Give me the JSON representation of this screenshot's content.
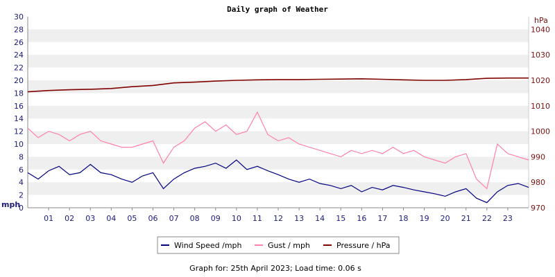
{
  "chart_data": {
    "type": "line",
    "title": "Daily graph of Weather",
    "left_axis": {
      "unit_label": "mph",
      "range": [
        0,
        30
      ],
      "ticks": [
        "0",
        "2",
        "4",
        "6",
        "8",
        "10",
        "12",
        "14",
        "16",
        "18",
        "20",
        "22",
        "24",
        "26",
        "28",
        "30"
      ]
    },
    "right_axis": {
      "unit_label": "hPa",
      "range": [
        970,
        1045
      ],
      "ticks": [
        "970",
        "980",
        "990",
        "1000",
        "1010",
        "1020",
        "1030",
        "1040"
      ]
    },
    "x_axis": {
      "range": [
        0,
        24
      ],
      "ticks": [
        "01",
        "02",
        "03",
        "04",
        "05",
        "06",
        "07",
        "08",
        "09",
        "10",
        "11",
        "12",
        "13",
        "14",
        "15",
        "16",
        "17",
        "18",
        "19",
        "20",
        "21",
        "22",
        "23"
      ]
    },
    "grid": "alternating horizontal bands",
    "legend_position": "bottom-center",
    "series": [
      {
        "name": "Wind Speed /mph",
        "axis": "left",
        "color": "#000080",
        "x": [
          0,
          0.5,
          1,
          1.5,
          2,
          2.5,
          3,
          3.5,
          4,
          4.5,
          5,
          5.5,
          6,
          6.5,
          7,
          7.5,
          8,
          8.5,
          9,
          9.5,
          10,
          10.5,
          11,
          11.5,
          12,
          12.5,
          13,
          13.5,
          14,
          14.5,
          15,
          15.5,
          16,
          16.5,
          17,
          17.5,
          18,
          18.5,
          19,
          19.5,
          20,
          20.5,
          21,
          21.5,
          22,
          22.5,
          23,
          23.5,
          24
        ],
        "values": [
          5.5,
          4.5,
          5.8,
          6.5,
          5.2,
          5.5,
          6.8,
          5.5,
          5.2,
          4.5,
          4.0,
          5.0,
          5.5,
          3.0,
          4.5,
          5.5,
          6.2,
          6.5,
          7.0,
          6.2,
          7.5,
          6.0,
          6.5,
          5.8,
          5.2,
          4.5,
          4.0,
          4.5,
          3.8,
          3.5,
          3.0,
          3.5,
          2.5,
          3.2,
          2.8,
          3.5,
          3.2,
          2.8,
          2.5,
          2.2,
          1.8,
          2.5,
          3.0,
          1.5,
          0.8,
          2.5,
          3.5,
          3.8,
          3.2
        ]
      },
      {
        "name": "Gust / mph",
        "axis": "left",
        "color": "#ff80a8",
        "x": [
          0,
          0.5,
          1,
          1.5,
          2,
          2.5,
          3,
          3.5,
          4,
          4.5,
          5,
          5.5,
          6,
          6.5,
          7,
          7.5,
          8,
          8.5,
          9,
          9.5,
          10,
          10.5,
          11,
          11.5,
          12,
          12.5,
          13,
          13.5,
          14,
          14.5,
          15,
          15.5,
          16,
          16.5,
          17,
          17.5,
          18,
          18.5,
          19,
          19.5,
          20,
          20.5,
          21,
          21.5,
          22,
          22.5,
          23,
          23.5,
          24
        ],
        "values": [
          12.5,
          11.0,
          12.0,
          11.5,
          10.5,
          11.5,
          12.0,
          10.5,
          10.0,
          9.5,
          9.5,
          10.0,
          10.5,
          7.0,
          9.5,
          10.5,
          12.5,
          13.5,
          12.0,
          13.0,
          11.5,
          12.0,
          15.0,
          11.5,
          10.5,
          11.0,
          10.0,
          9.5,
          9.0,
          8.5,
          8.0,
          9.0,
          8.5,
          9.0,
          8.5,
          9.5,
          8.5,
          9.0,
          8.0,
          7.5,
          7.0,
          8.0,
          8.5,
          4.5,
          3.0,
          10.0,
          8.5,
          8.0,
          7.5
        ]
      },
      {
        "name": "Pressure / hPa",
        "axis": "right",
        "color": "#800000",
        "x": [
          0,
          1,
          2,
          3,
          4,
          5,
          6,
          7,
          8,
          9,
          10,
          11,
          12,
          13,
          14,
          15,
          16,
          17,
          18,
          19,
          20,
          21,
          22,
          23,
          24
        ],
        "values": [
          1015.5,
          1016.0,
          1016.3,
          1016.5,
          1016.8,
          1017.5,
          1018.0,
          1019.0,
          1019.3,
          1019.7,
          1020.0,
          1020.2,
          1020.3,
          1020.3,
          1020.4,
          1020.5,
          1020.6,
          1020.4,
          1020.2,
          1020.0,
          1020.0,
          1020.3,
          1020.8,
          1020.9,
          1020.9
        ]
      }
    ]
  },
  "footer": {
    "text": "Graph for: 25th April 2023; Load time: 0.06 s"
  }
}
